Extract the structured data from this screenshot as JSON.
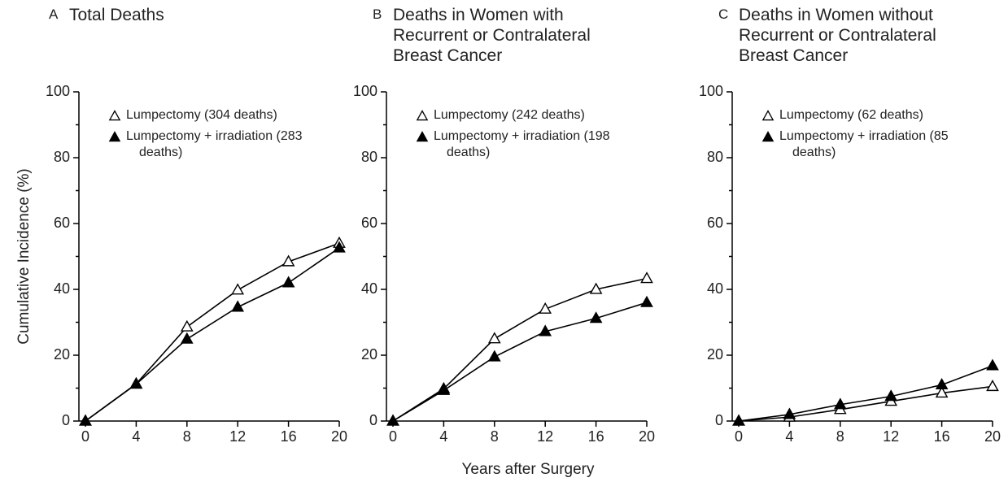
{
  "chart_data": [
    {
      "type": "line",
      "letter": "A",
      "title": "Total Deaths",
      "ylabel": "Cumulative Incidence (%)",
      "x": [
        0,
        4,
        8,
        12,
        16,
        20
      ],
      "series": [
        {
          "name": "Lumpectomy (304 deaths)",
          "color": "#000000",
          "marker_fill": "#ffffff",
          "values": [
            0,
            11.3,
            28.6,
            39.8,
            48.4,
            54
          ]
        },
        {
          "name": "Lumpectomy + irradiation (283 deaths)",
          "color": "#000000",
          "marker_fill": "#000000",
          "values": [
            0,
            11.2,
            24.9,
            34.6,
            42,
            52.6
          ]
        }
      ],
      "xlim": [
        0,
        20
      ],
      "ylim": [
        0,
        100
      ],
      "xticks": [
        0,
        4,
        8,
        12,
        16,
        20
      ],
      "yticks": [
        0,
        20,
        40,
        60,
        80,
        100
      ],
      "yminorticks": [
        10,
        30,
        50,
        70,
        90
      ]
    },
    {
      "type": "line",
      "letter": "B",
      "title": "Deaths in Women with Recurrent or Contralateral Breast Cancer",
      "xlabel": "Years after Surgery",
      "x": [
        0,
        4,
        8,
        12,
        16,
        20
      ],
      "series": [
        {
          "name": "Lumpectomy (242 deaths)",
          "color": "#000000",
          "marker_fill": "#ffffff",
          "values": [
            0,
            9.8,
            25,
            34,
            40,
            43.3
          ]
        },
        {
          "name": "Lumpectomy + irradiation (198 deaths)",
          "color": "#000000",
          "marker_fill": "#000000",
          "values": [
            0,
            9.3,
            19.5,
            27.2,
            31.2,
            36
          ]
        }
      ],
      "xlim": [
        0,
        20
      ],
      "ylim": [
        0,
        100
      ],
      "xticks": [
        0,
        4,
        8,
        12,
        16,
        20
      ],
      "yticks": [
        0,
        20,
        40,
        60,
        80,
        100
      ],
      "yminorticks": [
        10,
        30,
        50,
        70,
        90
      ]
    },
    {
      "type": "line",
      "letter": "C",
      "title": "Deaths in Women without Recurrent or Contralateral Breast Cancer",
      "x": [
        0,
        4,
        8,
        12,
        16,
        20
      ],
      "series": [
        {
          "name": "Lumpectomy (62 deaths)",
          "color": "#000000",
          "marker_fill": "#ffffff",
          "values": [
            0,
            1.2,
            3.5,
            6,
            8.5,
            10.5
          ]
        },
        {
          "name": "Lumpectomy + irradiation (85 deaths)",
          "color": "#000000",
          "marker_fill": "#000000",
          "values": [
            0,
            2,
            5,
            7.5,
            11,
            16.8
          ]
        }
      ],
      "xlim": [
        0,
        20
      ],
      "ylim": [
        0,
        100
      ],
      "xticks": [
        0,
        4,
        8,
        12,
        16,
        20
      ],
      "yticks": [
        0,
        20,
        40,
        60,
        80,
        100
      ],
      "yminorticks": [
        10,
        30,
        50,
        70,
        90
      ]
    }
  ]
}
